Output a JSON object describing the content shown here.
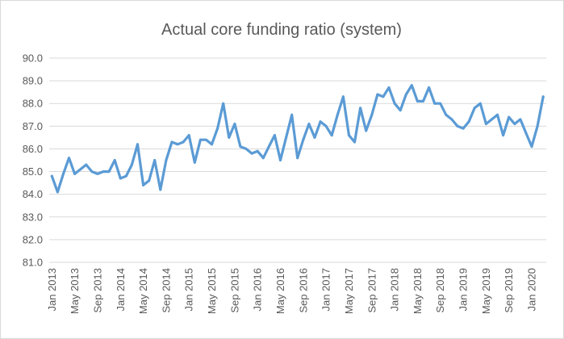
{
  "chart_data": {
    "type": "line",
    "title": "Actual core funding ratio (system)",
    "xlabel": "",
    "ylabel": "",
    "ylim": [
      81.0,
      90.0
    ],
    "y_ticks": [
      "81.0",
      "82.0",
      "83.0",
      "84.0",
      "85.0",
      "86.0",
      "87.0",
      "88.0",
      "89.0",
      "90.0"
    ],
    "x_tick_labels": [
      "Jan 2013",
      "May 2013",
      "Sep 2013",
      "Jan 2014",
      "May 2014",
      "Sep 2014",
      "Jan 2015",
      "May 2015",
      "Sep 2015",
      "Jan 2016",
      "May 2016",
      "Sep 2016",
      "Jan 2017",
      "May 2017",
      "Sep 2017",
      "Jan 2018",
      "May 2018",
      "Sep 2018",
      "Jan 2019",
      "May 2019",
      "Sep 2019",
      "Jan 2020"
    ],
    "x_range": [
      "Jan 2013",
      "Mar 2020"
    ],
    "frequency": "monthly",
    "grid": "horizontal",
    "legend": "none",
    "series": [
      {
        "color": "#5b9bd5",
        "values": [
          84.8,
          84.1,
          84.9,
          85.6,
          84.9,
          85.1,
          85.3,
          85.0,
          84.9,
          85.0,
          85.0,
          85.5,
          84.7,
          84.8,
          85.3,
          86.2,
          84.4,
          84.6,
          85.5,
          84.2,
          85.5,
          86.3,
          86.2,
          86.3,
          86.6,
          85.4,
          86.4,
          86.4,
          86.2,
          86.9,
          88.0,
          86.5,
          87.1,
          86.1,
          86.0,
          85.8,
          85.9,
          85.6,
          86.1,
          86.6,
          85.5,
          86.5,
          87.5,
          85.6,
          86.4,
          87.1,
          86.5,
          87.2,
          87.0,
          86.6,
          87.5,
          88.3,
          86.6,
          86.3,
          87.8,
          86.8,
          87.5,
          88.4,
          88.3,
          88.7,
          88.0,
          87.7,
          88.4,
          88.8,
          88.1,
          88.1,
          88.7,
          88.0,
          88.0,
          87.5,
          87.3,
          87.0,
          86.9,
          87.2,
          87.8,
          88.0,
          87.1,
          87.3,
          87.5,
          86.6,
          87.4,
          87.1,
          87.3,
          86.7,
          86.1,
          87.0,
          88.3
        ]
      }
    ]
  }
}
